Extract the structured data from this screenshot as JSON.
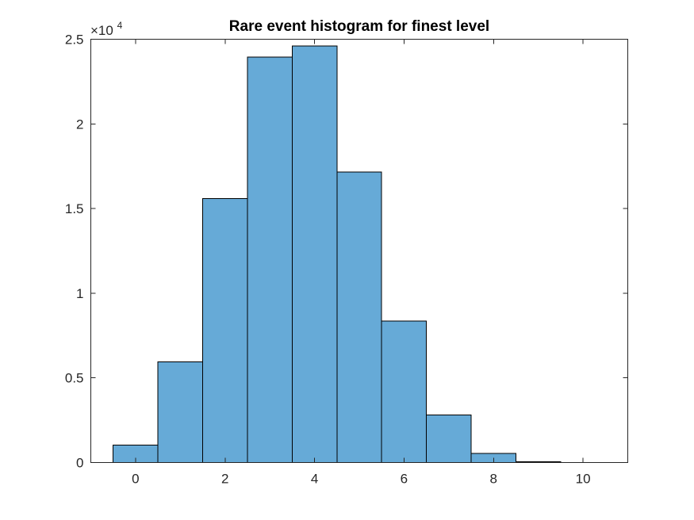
{
  "chart_data": {
    "type": "bar",
    "title": "Rare event histogram for finest level",
    "xlabel": "",
    "ylabel": "",
    "x": [
      0,
      1,
      2,
      3,
      4,
      5,
      6,
      7,
      8,
      9,
      10
    ],
    "values": [
      1020,
      5950,
      15600,
      23950,
      24600,
      17150,
      8350,
      2800,
      550,
      50,
      0
    ],
    "bin_width": 1,
    "xlim": [
      -1,
      11
    ],
    "ylim": [
      0,
      25000
    ],
    "xticks": [
      0,
      2,
      4,
      6,
      8,
      10
    ],
    "xtick_labels": [
      "0",
      "2",
      "4",
      "6",
      "8",
      "10"
    ],
    "yticks": [
      0,
      5000,
      10000,
      15000,
      20000,
      25000
    ],
    "ytick_labels": [
      "0",
      "0.5",
      "1",
      "1.5",
      "2",
      "2.5"
    ],
    "y_exponent_base": "×10",
    "y_exponent_power": "4",
    "bar_color": "#66aad7",
    "edge_color": "#000000",
    "grid": false,
    "legend": "none"
  }
}
